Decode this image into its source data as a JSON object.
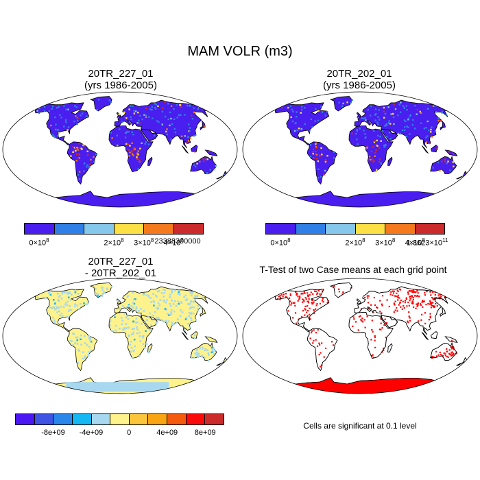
{
  "title": "MAM VOLR (m3)",
  "panels": {
    "top_left": {
      "title_line1": "20TR_227_01",
      "title_line2": "(yrs 1986-2005)"
    },
    "top_right": {
      "title_line1": "20TR_202_01",
      "title_line2": "(yrs 1986-2005)"
    },
    "bottom_left": {
      "title_line1": "20TR_227_01",
      "title_line2": "- 20TR_202_01"
    },
    "bottom_right": {
      "title_line1": "T-Test of two Case means at each grid point"
    }
  },
  "colorbars": {
    "top_left": {
      "colors": [
        "#4a1eee",
        "#2f7fe6",
        "#86c7ec",
        "#fbe145",
        "#f47a1d",
        "#cc2b2b"
      ],
      "labels": [
        "0×10",
        "2×10",
        "3×10",
        "4×10",
        "23388300000"
      ],
      "exponents": [
        "8",
        "8",
        "8",
        "8",
        ""
      ]
    },
    "top_right": {
      "colors": [
        "#4a1eee",
        "#2f7fe6",
        "#86c7ec",
        "#fbe145",
        "#f47a1d",
        "#cc2b2b"
      ],
      "labels": [
        "0×10",
        "2×10",
        "3×10",
        "4×10",
        "1.8623×10"
      ],
      "exponents": [
        "8",
        "8",
        "8",
        "8",
        "11"
      ]
    },
    "bottom_left": {
      "colors": [
        "#4b17f3",
        "#3e54e3",
        "#2a86e8",
        "#14b8f3",
        "#a8d8ef",
        "#fdf28c",
        "#fbc63c",
        "#f9a412",
        "#f45b0c",
        "#fb0a0a",
        "#cc2b2b"
      ],
      "labels": [
        "-8e+09",
        "-4e+09",
        "0",
        "4e+09",
        "8e+09"
      ]
    }
  },
  "significance_note": "Cells are significant at 0.1 level",
  "map_colors": {
    "ocean": "#ffffff",
    "land_mean": "#4a1eee",
    "land_diff": "#fdf28c",
    "diff_patches": "#a8d8ef",
    "significant": "#ff0000",
    "coast": "#000000"
  }
}
